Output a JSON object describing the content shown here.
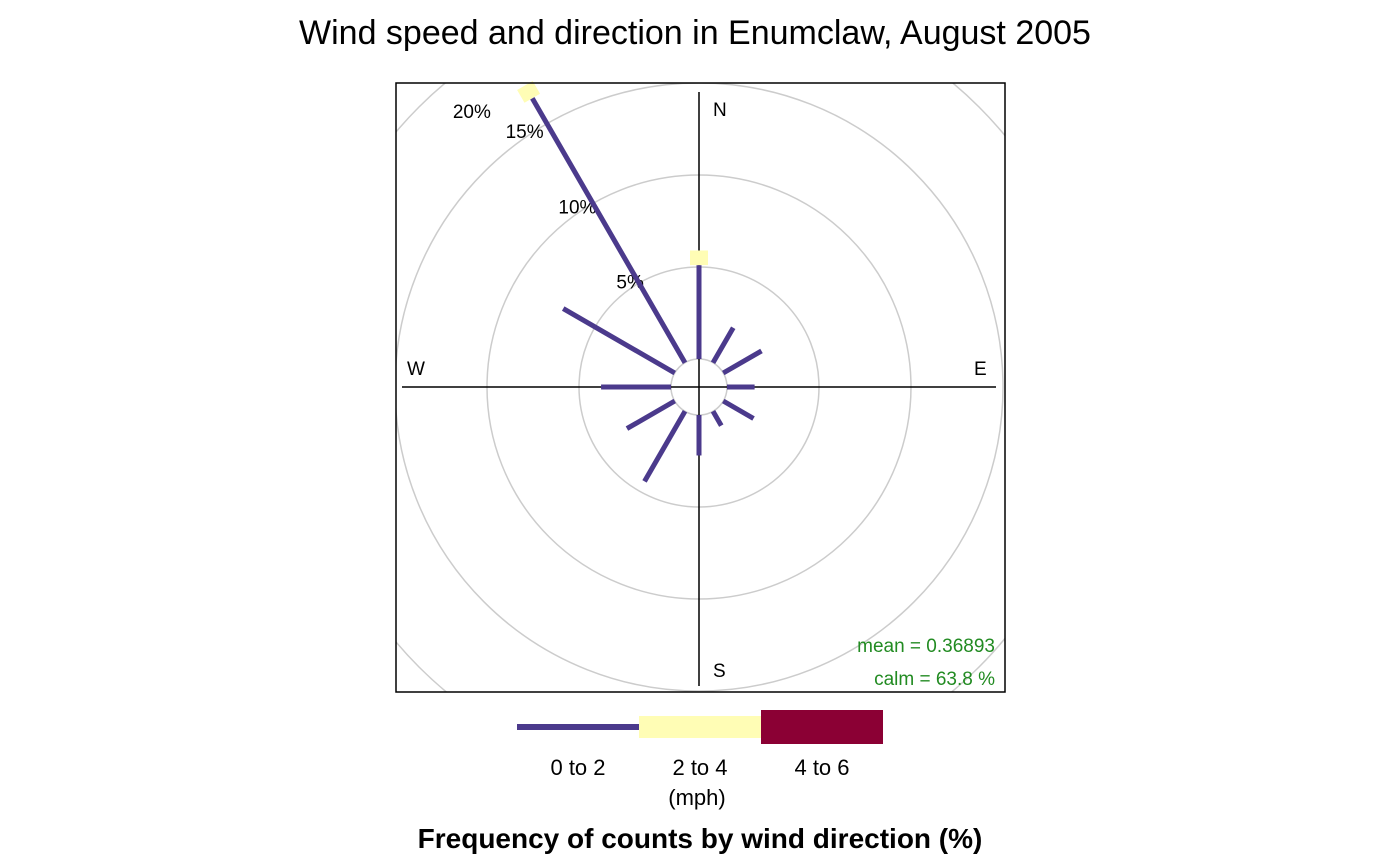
{
  "chart_data": {
    "type": "windrose",
    "title": "Wind speed and direction in Enumclaw, August 2005",
    "xlabel": "Frequency of counts by wind direction (%)",
    "compass": {
      "north": "N",
      "east": "E",
      "south": "S",
      "west": "W"
    },
    "rings": [
      {
        "value": 5,
        "label": "5%"
      },
      {
        "value": 10,
        "label": "10%"
      },
      {
        "value": 15,
        "label": "15%"
      },
      {
        "value": 20,
        "label": "20%"
      }
    ],
    "rlim": [
      0,
      20
    ],
    "grid": true,
    "bins": [
      {
        "name": "0 to 2",
        "color": "#4B3A8C"
      },
      {
        "name": "2 to 4",
        "color": "#FFFDB5"
      },
      {
        "name": "4 to 6",
        "color": "#8B0034"
      }
    ],
    "bin_units": "(mph)",
    "directions": [
      {
        "angle": 0,
        "values": [
          5.1,
          0.8,
          0
        ]
      },
      {
        "angle": 30,
        "values": [
          2.2,
          0,
          0
        ]
      },
      {
        "angle": 60,
        "values": [
          2.4,
          0,
          0
        ]
      },
      {
        "angle": 90,
        "values": [
          1.5,
          0,
          0
        ]
      },
      {
        "angle": 120,
        "values": [
          1.9,
          0,
          0
        ]
      },
      {
        "angle": 150,
        "values": [
          0.9,
          0,
          0
        ]
      },
      {
        "angle": 180,
        "values": [
          2.2,
          0,
          0
        ]
      },
      {
        "angle": 210,
        "values": [
          4.4,
          0,
          0
        ]
      },
      {
        "angle": 240,
        "values": [
          3.0,
          0,
          0
        ]
      },
      {
        "angle": 270,
        "values": [
          3.8,
          0,
          0
        ]
      },
      {
        "angle": 300,
        "values": [
          7.0,
          0,
          0
        ]
      },
      {
        "angle": 330,
        "values": [
          16.6,
          0.8,
          0
        ]
      }
    ],
    "stats": {
      "mean": "mean  =  0.36893",
      "calm": "calm =  63.8 %"
    }
  }
}
